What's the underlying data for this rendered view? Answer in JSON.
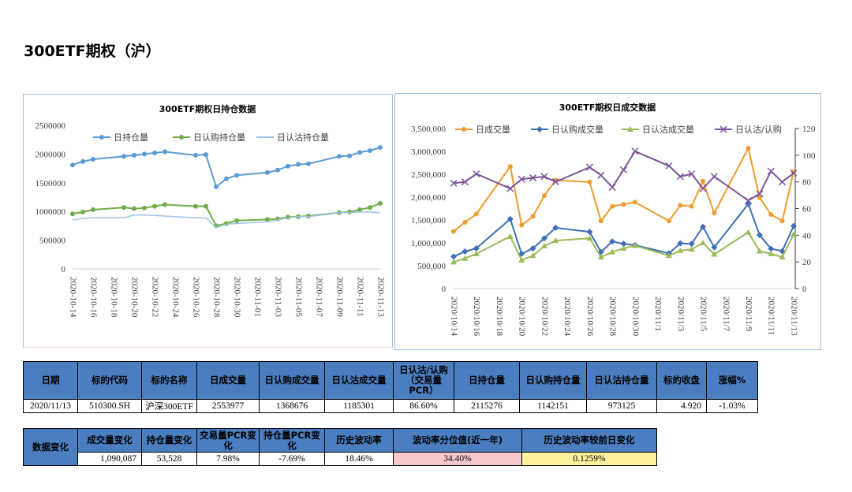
{
  "page": {
    "title": "300ETF期权（沪）"
  },
  "chart_data": [
    {
      "type": "line",
      "title": "300ETF期权日持仓数据",
      "categories": [
        "2020-10-14",
        "2020-10-15",
        "2020-10-16",
        "2020-10-19",
        "2020-10-20",
        "2020-10-21",
        "2020-10-22",
        "2020-10-23",
        "2020-10-26",
        "2020-10-27",
        "2020-10-28",
        "2020-10-29",
        "2020-10-30",
        "2020-11-02",
        "2020-11-03",
        "2020-11-04",
        "2020-11-05",
        "2020-11-06",
        "2020-11-09",
        "2020-11-10",
        "2020-11-11",
        "2020-11-12",
        "2020-11-13"
      ],
      "tick_labels": [
        "2020-10-14",
        "2020-10-16",
        "2020-10-18",
        "2020-10-20",
        "2020-10-22",
        "2020-10-24",
        "2020-10-26",
        "2020-10-28",
        "2020-10-30",
        "2020-11-01",
        "2020-11-03",
        "2020-11-05",
        "2020-11-07",
        "2020-11-09",
        "2020-11-11",
        "2020-11-13"
      ],
      "y_ticks": [
        "2500000",
        "2000000",
        "1500000",
        "1000000",
        "500000",
        "0"
      ],
      "ylim": [
        0,
        2500000
      ],
      "series": [
        {
          "name": "日持仓量",
          "color": "#5b9bd5",
          "marker": "circle",
          "values": [
            1810000,
            1870000,
            1910000,
            1960000,
            1980000,
            2000000,
            2020000,
            2040000,
            1980000,
            1990000,
            1430000,
            1570000,
            1630000,
            1680000,
            1720000,
            1790000,
            1820000,
            1830000,
            1960000,
            1970000,
            2030000,
            2060000,
            2115276
          ]
        },
        {
          "name": "日认购持仓量",
          "color": "#70ad47",
          "marker": "circle",
          "values": [
            960000,
            990000,
            1030000,
            1070000,
            1050000,
            1060000,
            1090000,
            1120000,
            1090000,
            1090000,
            750000,
            790000,
            840000,
            860000,
            870000,
            900000,
            910000,
            920000,
            980000,
            990000,
            1030000,
            1070000,
            1142151
          ]
        },
        {
          "name": "日认沽持仓量",
          "color": "#9dc3e6",
          "marker": "none",
          "values": [
            850000,
            880000,
            890000,
            890000,
            940000,
            940000,
            930000,
            920000,
            890000,
            890000,
            720000,
            780000,
            790000,
            820000,
            850000,
            890000,
            910000,
            910000,
            980000,
            980000,
            990000,
            990000,
            973125
          ]
        }
      ]
    },
    {
      "type": "line",
      "title": "300ETF期权日成交数据",
      "categories": [
        "2020/10/14",
        "2020/10/15",
        "2020/10/16",
        "2020/10/19",
        "2020/10/20",
        "2020/10/21",
        "2020/10/22",
        "2020/10/23",
        "2020/10/26",
        "2020/10/27",
        "2020/10/28",
        "2020/10/29",
        "2020/10/30",
        "2020/11/2",
        "2020/11/3",
        "2020/11/4",
        "2020/11/5",
        "2020/11/6",
        "2020/11/9",
        "2020/11/10",
        "2020/11/11",
        "2020/11/12",
        "2020/11/13"
      ],
      "tick_labels": [
        "2020/10/14",
        "2020/10/16",
        "2020/10/18",
        "2020/10/20",
        "2020/10/22",
        "2020/10/24",
        "2020/10/26",
        "2020/10/28",
        "2020/10/30",
        "2020/11/1",
        "2020/11/3",
        "2020/11/5",
        "2020/11/7",
        "2020/11/9",
        "2020/11/11",
        "2020/11/13"
      ],
      "y_ticks_left": [
        "3,500,000",
        "3,000,000",
        "2,500,000",
        "2,000,000",
        "1,500,000",
        "1,000,000",
        "500,000",
        "0"
      ],
      "y_ticks_right": [
        "120",
        "100",
        "80",
        "60",
        "40",
        "20",
        "0"
      ],
      "ylim_left": [
        0,
        3500000
      ],
      "ylim_right": [
        0,
        120
      ],
      "series": [
        {
          "name": "日成交量",
          "axis": "left",
          "color": "#ed9c2e",
          "marker": "circle",
          "values": [
            1250000,
            1450000,
            1630000,
            2670000,
            1390000,
            1580000,
            2030000,
            2370000,
            2330000,
            1480000,
            1800000,
            1840000,
            1890000,
            1480000,
            1820000,
            1800000,
            2350000,
            1650000,
            3070000,
            1990000,
            1620000,
            1480000,
            2553977
          ]
        },
        {
          "name": "日认购成交量",
          "axis": "left",
          "color": "#3f6fb5",
          "marker": "diamond",
          "values": [
            700000,
            810000,
            880000,
            1520000,
            760000,
            880000,
            1100000,
            1330000,
            1240000,
            800000,
            1030000,
            980000,
            950000,
            770000,
            990000,
            980000,
            1350000,
            900000,
            1850000,
            1170000,
            870000,
            820000,
            1368676
          ]
        },
        {
          "name": "日认沽成交量",
          "axis": "left",
          "color": "#9bbb59",
          "marker": "triangle",
          "values": [
            580000,
            660000,
            760000,
            1140000,
            620000,
            720000,
            930000,
            1050000,
            1100000,
            690000,
            800000,
            880000,
            940000,
            720000,
            830000,
            860000,
            1000000,
            750000,
            1230000,
            820000,
            760000,
            690000,
            1185301
          ]
        },
        {
          "name": "日认沽/认购",
          "axis": "right",
          "color": "#7a559a",
          "marker": "x",
          "values": [
            79,
            80,
            86,
            75,
            82,
            83,
            84,
            80,
            91,
            85,
            76,
            89,
            103,
            92,
            84,
            86,
            75,
            84,
            66,
            71,
            88,
            80,
            86.6
          ]
        }
      ]
    }
  ],
  "table_main": {
    "headers": [
      "日期",
      "标的代码",
      "标的名称",
      "日成交量",
      "日认购成交量",
      "日认沽成交量",
      "日认沽/认购（交易量PCR）",
      "日持仓量",
      "日认购持仓量",
      "日认沽持仓量",
      "标的收盘",
      "涨幅%"
    ],
    "row": [
      "2020/11/13",
      "510300.SH",
      "沪深300ETF",
      "2553977",
      "1368676",
      "1185301",
      "86.60%",
      "2115276",
      "1142151",
      "973125",
      "4.920",
      "-1.03%"
    ]
  },
  "table_change": {
    "label": "数据变化",
    "headers": [
      "成交量变化",
      "持仓量变化",
      "交易量PCR变化",
      "持仓量PCR变化",
      "历史波动率",
      "波动率分位值(近一年)",
      "历史波动率较前日变化"
    ],
    "row": [
      "1,090,087",
      "53,528",
      "7.98%",
      "-7.69%",
      "18.46%",
      "34.40%",
      "0.1259%"
    ]
  }
}
